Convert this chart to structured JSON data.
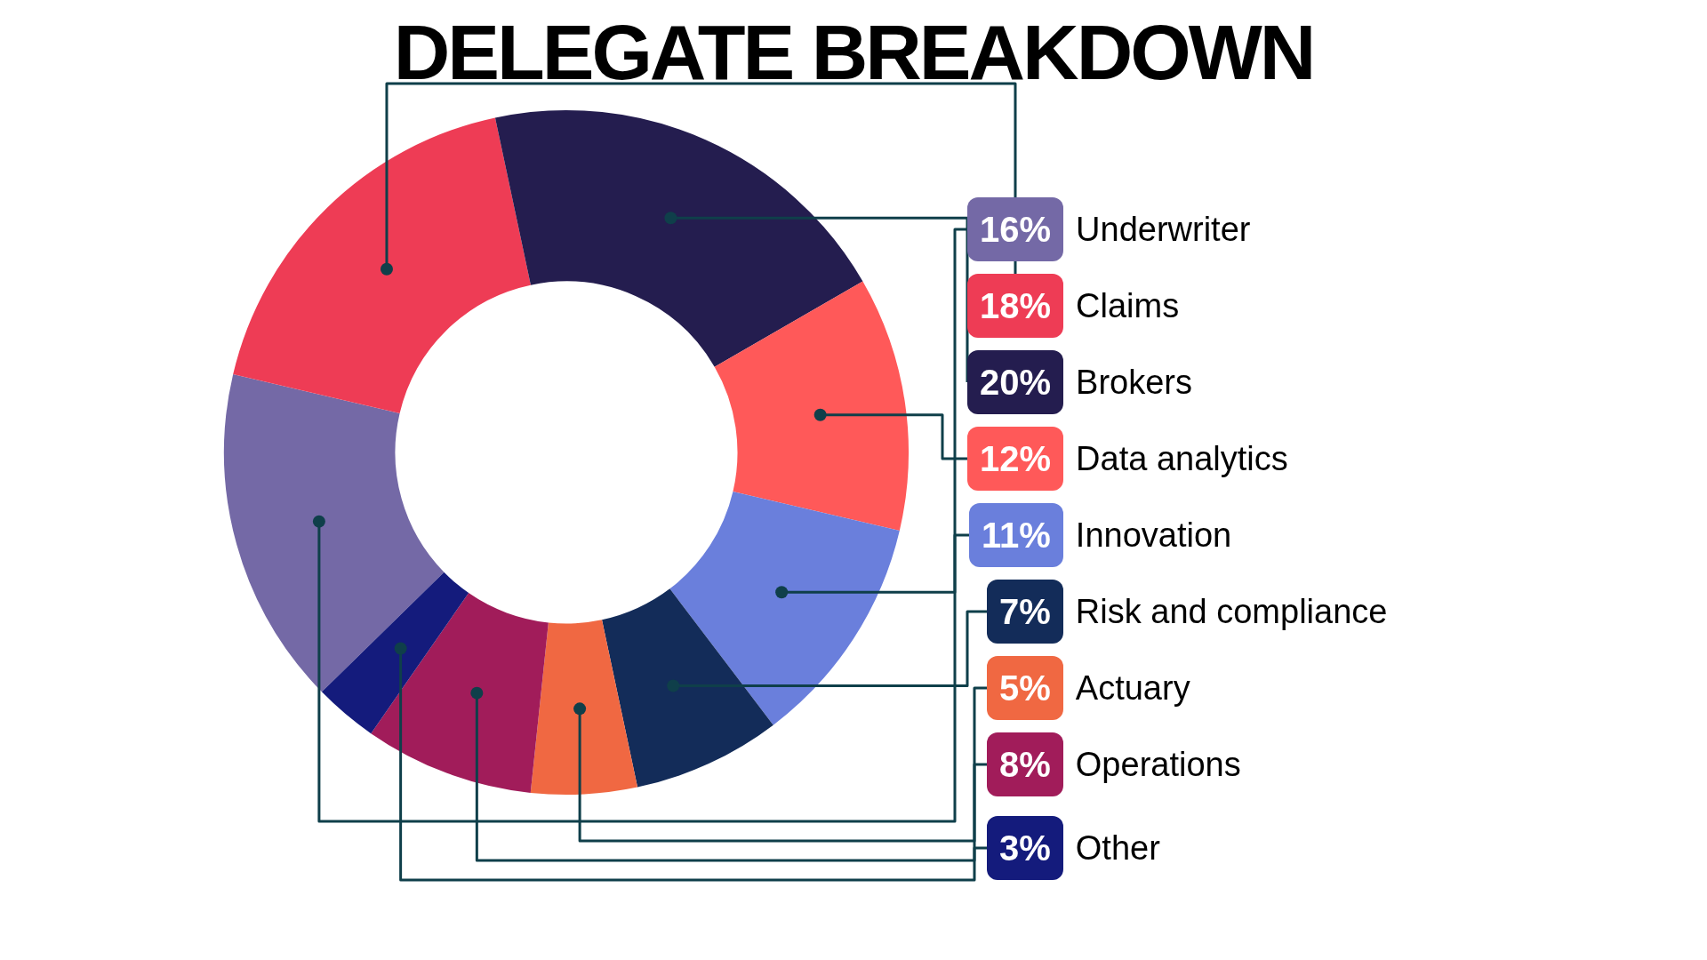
{
  "chart_data": {
    "type": "donut",
    "title": "DELEGATE BREAKDOWN",
    "categories": [
      "Underwriter",
      "Claims",
      "Brokers",
      "Data analytics",
      "Innovation",
      "Risk and compliance",
      "Actuary",
      "Operations",
      "Other"
    ],
    "values": [
      16,
      18,
      20,
      12,
      11,
      7,
      5,
      8,
      3
    ],
    "value_labels": [
      "16%",
      "18%",
      "20%",
      "12%",
      "11%",
      "7%",
      "5%",
      "8%",
      "3%"
    ],
    "colors": [
      "#7469a6",
      "#ee3c55",
      "#241d4f",
      "#ff5959",
      "#6a7fdc",
      "#132c59",
      "#f06842",
      "#a11c5a",
      "#141b7c"
    ],
    "legend": "right"
  }
}
